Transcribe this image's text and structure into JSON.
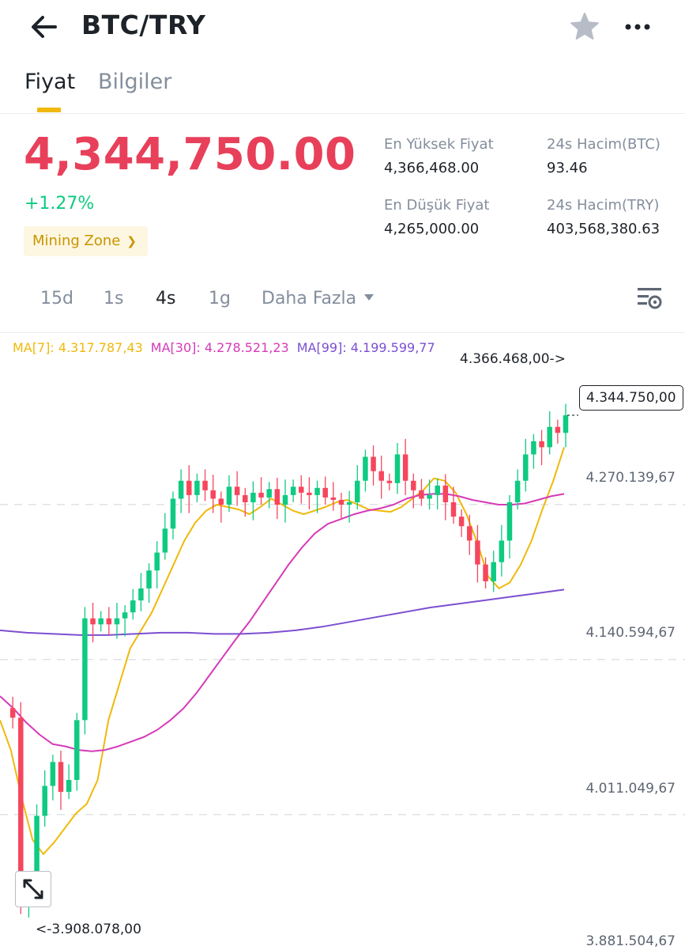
{
  "header": {
    "pair": "BTC/TRY",
    "icons": {
      "back": "arrow-left-icon",
      "favorite": "star-icon",
      "more": "more-dots-icon"
    }
  },
  "tabs": [
    {
      "label": "Fiyat",
      "active": true
    },
    {
      "label": "Bilgiler",
      "active": false
    }
  ],
  "ticker": {
    "last_price": "4,344,750.00",
    "change_percent": "+1.27%",
    "badge": "Mining Zone",
    "high_label": "En Yüksek Fiyat",
    "high_value": "4,366,468.00",
    "low_label": "En Düşük Fiyat",
    "low_value": "4,265,000.00",
    "vol_btc_label": "24s Hacim(BTC)",
    "vol_btc_value": "93.46",
    "vol_try_label": "24s Hacim(TRY)",
    "vol_try_value": "403,568,380.63"
  },
  "intervals": {
    "items": [
      "15d",
      "1s",
      "4s",
      "1g"
    ],
    "active": "4s",
    "more_label": "Daha Fazla"
  },
  "chart": {
    "ma7_text": "MA[7]: 4.317.787,43",
    "ma30_text": "MA[30]: 4.278.521,23",
    "ma99_text": "MA[99]: 4.199.599,77",
    "axis_labels": [
      "4.270.139,67",
      "4.140.594,67",
      "4.011.049,67",
      "3.881.504,67"
    ],
    "high_marker": "4.366.468,00->",
    "low_marker": "<-3.908.078,00",
    "last_price_tag": "4.344.750,00",
    "colors": {
      "up": "#0ecb81",
      "down": "#f6465d",
      "ma7": "#f0b90b",
      "ma30": "#d63ab8",
      "ma99": "#7d4fd0"
    }
  },
  "chart_data": {
    "type": "candlestick",
    "y_axis_ticks": [
      4270139.67,
      4140594.67,
      4011049.67,
      3881504.67
    ],
    "y_range": [
      3881504.67,
      4366468.0
    ],
    "series": [
      {
        "name": "MA[7]",
        "values": [
          4090000,
          4065000,
          4025000,
          3990000,
          3978000,
          3988000,
          4000000,
          4012000,
          4020000,
          4040000,
          4090000,
          4120000,
          4150000,
          4165000,
          4180000,
          4200000,
          4220000,
          4240000,
          4255000,
          4265000,
          4270000,
          4268000,
          4266000,
          4262000,
          4268000,
          4275000,
          4270000,
          4265000,
          4262000,
          4265000,
          4268000,
          4272000,
          4274000,
          4270000,
          4266000,
          4265000,
          4264000,
          4268000,
          4275000,
          4282000,
          4292000,
          4290000,
          4280000,
          4262000,
          4238000,
          4210000,
          4200000,
          4205000,
          4220000,
          4240000,
          4266000,
          4290000,
          4318000
        ]
      },
      {
        "name": "MA[30]",
        "values": [
          4110000,
          4100000,
          4088000,
          4078000,
          4070000,
          4068000,
          4065000,
          4064000,
          4065000,
          4068000,
          4072000,
          4076000,
          4082000,
          4090000,
          4100000,
          4113000,
          4128000,
          4143000,
          4158000,
          4172000,
          4188000,
          4204000,
          4220000,
          4234000,
          4246000,
          4254000,
          4258000,
          4262000,
          4265000,
          4267000,
          4270000,
          4275000,
          4278000,
          4279000,
          4279000,
          4277000,
          4274000,
          4272000,
          4270000,
          4270000,
          4271000,
          4274000,
          4277000,
          4279000
        ]
      },
      {
        "name": "MA[99]",
        "values": [
          4165000,
          4163000,
          4162000,
          4161000,
          4161000,
          4162000,
          4163000,
          4163000,
          4162000,
          4162000,
          4163000,
          4165000,
          4168000,
          4172000,
          4176000,
          4180000,
          4184000,
          4187000,
          4190000,
          4193000,
          4196000,
          4199000
        ]
      }
    ]
  }
}
